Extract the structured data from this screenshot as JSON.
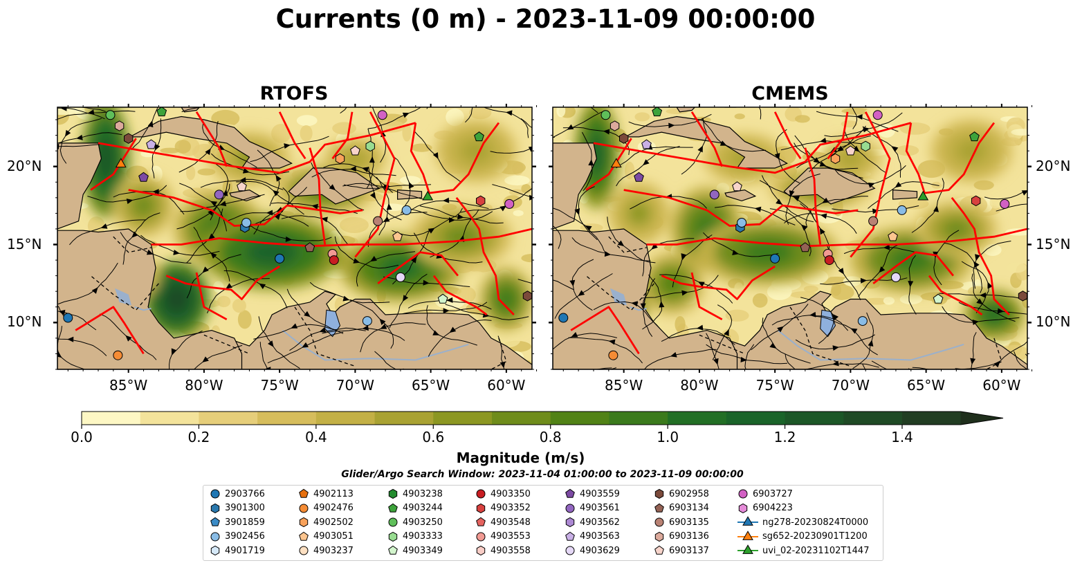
{
  "title": "Currents (0 m) - 2023-11-09 00:00:00",
  "panels": [
    {
      "name": "RTOFS"
    },
    {
      "name": "CMEMS"
    }
  ],
  "lon_labels": [
    "85°W",
    "80°W",
    "75°W",
    "70°W",
    "65°W",
    "60°W"
  ],
  "lat_labels": [
    "20°N",
    "15°N",
    "10°N"
  ],
  "colorbar": {
    "label": "Magnitude (m/s)",
    "ticks": [
      "0.0",
      "0.2",
      "0.4",
      "0.6",
      "0.8",
      "1.0",
      "1.2",
      "1.4"
    ],
    "colors": [
      "#fdf7c4",
      "#f3e39b",
      "#e6ce7a",
      "#d6bd5c",
      "#c3b046",
      "#a9a233",
      "#8c9722",
      "#6f8c1b",
      "#518216",
      "#3b7a1c",
      "#226f25",
      "#1a6429",
      "#1c5727",
      "#1f4a25",
      "#213d22",
      "#1f2f1c"
    ]
  },
  "search_window": "Glider/Argo Search Window: 2023-11-04 01:00:00 to 2023-11-09 00:00:00",
  "legend": [
    {
      "label": "2903766",
      "marker": "circle",
      "color": "#1f77b4"
    },
    {
      "label": "3901300",
      "marker": "hexagon",
      "color": "#2a78ad"
    },
    {
      "label": "3901859",
      "marker": "pentagon",
      "color": "#3b8bc6"
    },
    {
      "label": "3902456",
      "marker": "circle",
      "color": "#89bce6"
    },
    {
      "label": "4901719",
      "marker": "hexagon",
      "color": "#d6e9f8"
    },
    {
      "label": "4902113",
      "marker": "pentagon",
      "color": "#e6700f"
    },
    {
      "label": "4902476",
      "marker": "circle",
      "color": "#f58c35"
    },
    {
      "label": "4902502",
      "marker": "hexagon",
      "color": "#f9a25b"
    },
    {
      "label": "4903051",
      "marker": "pentagon",
      "color": "#fcc58f"
    },
    {
      "label": "4903237",
      "marker": "circle",
      "color": "#fde0c2"
    },
    {
      "label": "4903238",
      "marker": "hexagon",
      "color": "#238b2f"
    },
    {
      "label": "4903244",
      "marker": "pentagon",
      "color": "#3da33b"
    },
    {
      "label": "4903250",
      "marker": "circle",
      "color": "#5fbf5a"
    },
    {
      "label": "4903333",
      "marker": "hexagon",
      "color": "#98dc91"
    },
    {
      "label": "4903349",
      "marker": "pentagon",
      "color": "#d3f5cd"
    },
    {
      "label": "4903350",
      "marker": "circle",
      "color": "#c81d22"
    },
    {
      "label": "4903352",
      "marker": "hexagon",
      "color": "#d8413f"
    },
    {
      "label": "4903548",
      "marker": "pentagon",
      "color": "#e5635f"
    },
    {
      "label": "4903553",
      "marker": "circle",
      "color": "#f19a93"
    },
    {
      "label": "4903558",
      "marker": "hexagon",
      "color": "#f8cdc6"
    },
    {
      "label": "4903559",
      "marker": "pentagon",
      "color": "#7c4aa3"
    },
    {
      "label": "4903561",
      "marker": "circle",
      "color": "#9266c0"
    },
    {
      "label": "4903562",
      "marker": "hexagon",
      "color": "#ac88d3"
    },
    {
      "label": "4903563",
      "marker": "pentagon",
      "color": "#c9b0e6"
    },
    {
      "label": "4903629",
      "marker": "circle",
      "color": "#e5d8f6"
    },
    {
      "label": "6902958",
      "marker": "hexagon",
      "color": "#7b4a3b"
    },
    {
      "label": "6903134",
      "marker": "pentagon",
      "color": "#946255"
    },
    {
      "label": "6903135",
      "marker": "circle",
      "color": "#b98274"
    },
    {
      "label": "6903136",
      "marker": "hexagon",
      "color": "#dcaa9c"
    },
    {
      "label": "6903137",
      "marker": "pentagon",
      "color": "#f7d4cb"
    },
    {
      "label": "6903727",
      "marker": "circle",
      "color": "#d261c4"
    },
    {
      "label": "6904223",
      "marker": "hexagon",
      "color": "#e58bd8"
    },
    {
      "label": "ng278-20230824T0000",
      "marker": "line-triangle",
      "color": "#1f77b4"
    },
    {
      "label": "sg652-20230901T1200",
      "marker": "line-triangle",
      "color": "#ff7f0e"
    },
    {
      "label": "uvi_02-20231102T1447",
      "marker": "line-triangle",
      "color": "#2ca02c"
    }
  ]
}
